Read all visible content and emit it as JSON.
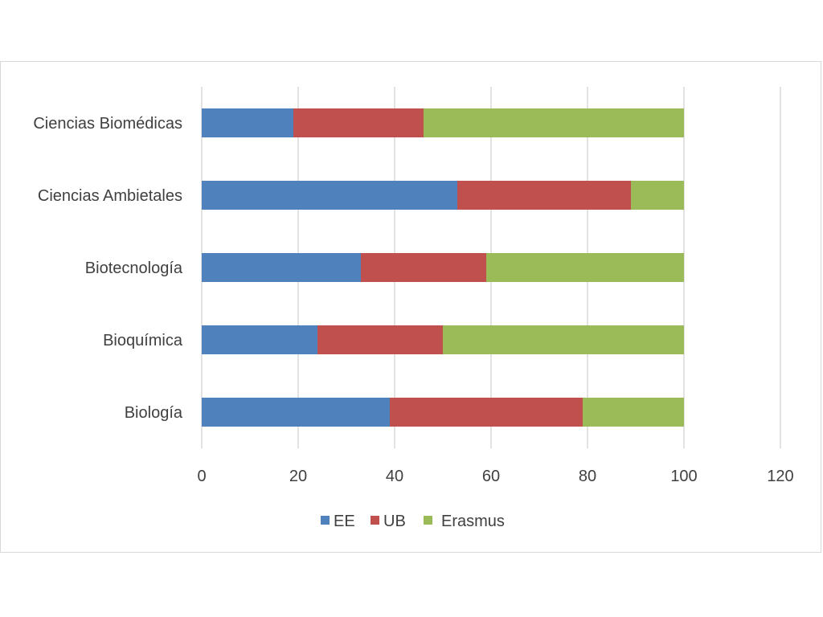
{
  "chart_data": {
    "type": "bar",
    "orientation": "horizontal",
    "stacked": true,
    "categories": [
      "Ciencias Biomédicas",
      "Ciencias Ambietales",
      "Biotecnología",
      "Bioquímica",
      "Biología"
    ],
    "series": [
      {
        "name": "EE",
        "color": "#4f81bd",
        "values": [
          19,
          53,
          33,
          24,
          39
        ]
      },
      {
        "name": "UB",
        "color": "#c0504d",
        "values": [
          27,
          36,
          26,
          26,
          40
        ]
      },
      {
        "name": "Erasmus",
        "color": "#9bbb59",
        "values": [
          54,
          11,
          41,
          50,
          21
        ]
      }
    ],
    "xlim": [
      0,
      120
    ],
    "xticks": [
      "0",
      "20",
      "40",
      "60",
      "80",
      "100",
      "120"
    ],
    "title": "",
    "xlabel": "",
    "ylabel": "",
    "grid": "vertical",
    "legend_position": "bottom"
  }
}
